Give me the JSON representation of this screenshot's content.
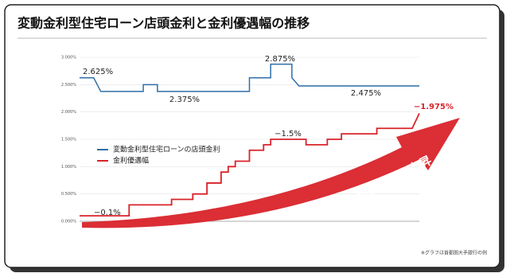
{
  "chart_data": {
    "type": "line",
    "title": "変動金利型住宅ローン店頭金利と金利優遇幅の推移",
    "xlim": [
      0,
      48
    ],
    "ylim": [
      0,
      3
    ],
    "yticks": [
      {
        "value": 0,
        "label": "0.000%"
      },
      {
        "value": 0.5,
        "label": "0.500%"
      },
      {
        "value": 1,
        "label": "1.000%"
      },
      {
        "value": 1.5,
        "label": "1.500%"
      },
      {
        "value": 2,
        "label": "2.000%"
      },
      {
        "value": 2.5,
        "label": "2.500%"
      },
      {
        "value": 3,
        "label": "3.000%"
      }
    ],
    "series": [
      {
        "name": "変動金利型住宅ローンの店頭金利",
        "color": "#2e6fa8",
        "x": [
          0,
          2,
          3,
          9,
          9,
          11,
          11,
          24,
          24,
          27,
          27,
          30,
          30,
          31,
          48
        ],
        "values": [
          2.625,
          2.625,
          2.375,
          2.375,
          2.5,
          2.5,
          2.375,
          2.375,
          2.625,
          2.625,
          2.875,
          2.875,
          2.625,
          2.475,
          2.475
        ]
      },
      {
        "name": "金利優遇幅",
        "color": "#d9232a",
        "x": [
          0,
          7,
          7,
          13,
          13,
          16,
          16,
          18,
          18,
          20,
          20,
          21,
          21,
          22,
          22,
          24,
          24,
          26,
          26,
          27,
          27,
          32,
          32,
          35,
          35,
          37,
          37,
          42,
          42,
          47,
          48
        ],
        "values": [
          0.1,
          0.1,
          0.3,
          0.3,
          0.4,
          0.4,
          0.5,
          0.5,
          0.7,
          0.7,
          0.9,
          0.9,
          1.0,
          1.0,
          1.1,
          1.1,
          1.3,
          1.3,
          1.4,
          1.4,
          1.5,
          1.5,
          1.4,
          1.4,
          1.5,
          1.5,
          1.6,
          1.6,
          1.7,
          1.7,
          1.975
        ]
      }
    ],
    "annotations": [
      "2.625%",
      "2.375%",
      "2.875%",
      "2.475%",
      "−0.1%",
      "−1.5%",
      "−1.975%"
    ],
    "arrow_label": "金利優遇幅の上昇",
    "note": "※グラフは首都圏大手銀行の例"
  }
}
